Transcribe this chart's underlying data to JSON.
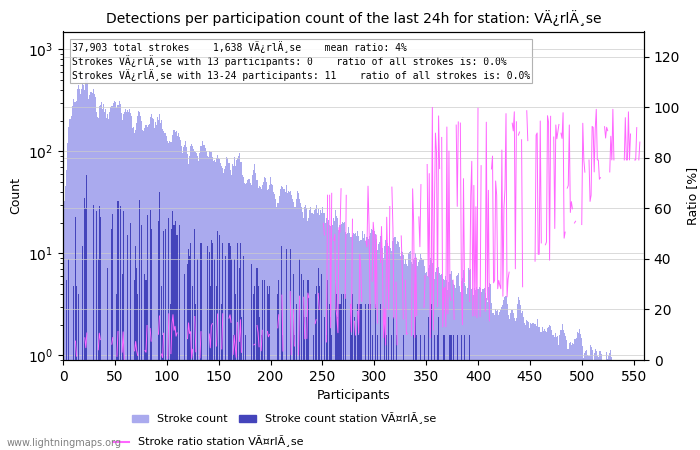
{
  "title": "Detections per participation count of the last 24h for station: VÄ¿rlÄ¸se",
  "xlabel": "Participants",
  "ylabel": "Count",
  "ylabel_right": "Ratio [%]",
  "annotation_lines": [
    "37,903 total strokes    1,638 VÄ¿rlÄ¸se    mean ratio: 4%",
    "Strokes VÄ¿rlÄ¸se with 13 participants: 0    ratio of all strokes is: 0.0%",
    "Strokes VÄ¿rlÄ¸se with 13-24 participants: 11    ratio of all strokes is: 0.0%"
  ],
  "watermark": "www.lightningmaps.org",
  "bar_color_total": "#aaaaee",
  "bar_color_station": "#4444bb",
  "line_color_ratio": "#ff66ff",
  "xlim": [
    0,
    560
  ],
  "ylim_log": [
    0.9,
    1500
  ],
  "ylim_right": [
    0,
    130
  ],
  "x_max": 556,
  "total_strokes": 37903,
  "station_strokes": 1638,
  "mean_ratio": 4,
  "seed": 12345
}
